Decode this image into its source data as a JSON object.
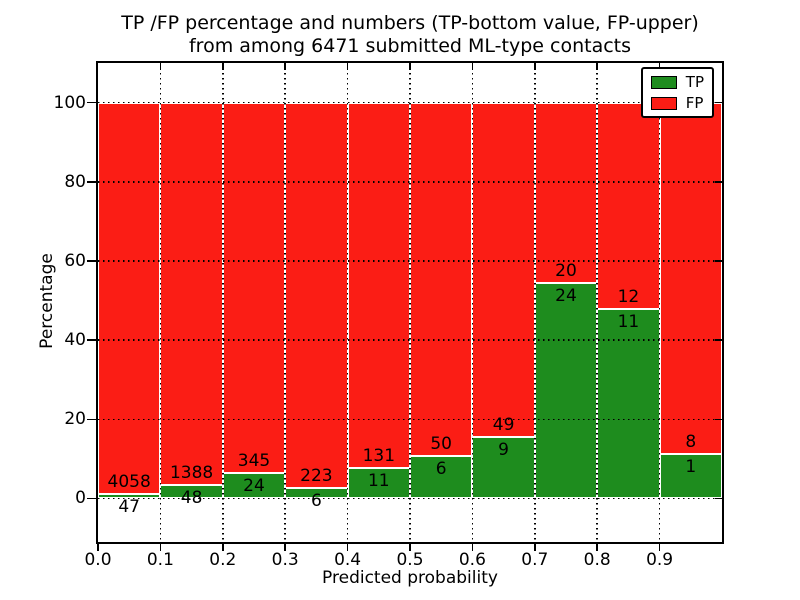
{
  "figure": {
    "title_line1": "TP /FP percentage and numbers (TP-bottom value, FP-upper)",
    "title_line2": "from among 6471 submitted ML-type contacts"
  },
  "chart_data": {
    "type": "bar",
    "subtype": "stacked-percentage-histogram",
    "title": "TP /FP percentage and numbers (TP-bottom value, FP-upper) from among 6471 submitted ML-type contacts",
    "xlabel": "Predicted probability",
    "ylabel": "Percentage",
    "xlim": [
      0.0,
      1.0
    ],
    "ylim": [
      -11,
      110
    ],
    "bar_width": 0.1,
    "grid": "dotted",
    "x_tick_labels": [
      "0.0",
      "0.1",
      "0.2",
      "0.3",
      "0.4",
      "0.5",
      "0.6",
      "0.7",
      "0.8",
      "0.9"
    ],
    "y_tick_values": [
      0,
      20,
      40,
      60,
      80,
      100
    ],
    "total_contacts": 6471,
    "legend": {
      "position": "upper-right",
      "entries": [
        {
          "label": "TP",
          "color": "#1e8c1e"
        },
        {
          "label": "FP",
          "color": "#fb1d15"
        }
      ]
    },
    "series_note": "bars normalized to 100%; green TP on bottom, red FP on top; labels show raw counts",
    "bins": [
      {
        "range_start": 0.0,
        "tp": 47,
        "fp": 4058
      },
      {
        "range_start": 0.1,
        "tp": 48,
        "fp": 1388
      },
      {
        "range_start": 0.2,
        "tp": 24,
        "fp": 345
      },
      {
        "range_start": 0.3,
        "tp": 6,
        "fp": 223
      },
      {
        "range_start": 0.4,
        "tp": 11,
        "fp": 131
      },
      {
        "range_start": 0.5,
        "tp": 6,
        "fp": 50
      },
      {
        "range_start": 0.6,
        "tp": 9,
        "fp": 49
      },
      {
        "range_start": 0.7,
        "tp": 24,
        "fp": 20
      },
      {
        "range_start": 0.8,
        "tp": 11,
        "fp": 12
      },
      {
        "range_start": 0.9,
        "tp": 1,
        "fp": 8
      }
    ],
    "colors": {
      "tp": "#1e8c1e",
      "fp": "#fb1d15",
      "bar_edge": "#ffffff",
      "axes": "#000000",
      "background": "#ffffff"
    }
  }
}
